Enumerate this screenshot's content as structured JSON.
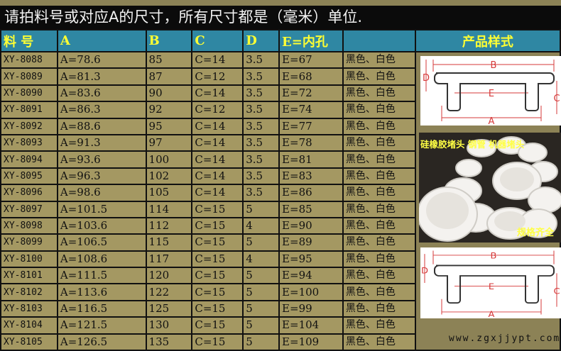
{
  "title": "请拍料号或对应A的尺寸，所有尺寸都是（毫米）单位.",
  "headers": [
    "料 号",
    "A",
    "B",
    "C",
    "D",
    "E=内孔",
    "",
    "产品样式"
  ],
  "rows": [
    [
      "XY-8088",
      "A=78.6",
      "85",
      "C=14",
      "3.5",
      "E=67",
      "黑色、白色"
    ],
    [
      "XY-8089",
      "A=81.3",
      "87",
      "C=12",
      "3.5",
      "E=68",
      "黑色、白色"
    ],
    [
      "XY-8090",
      "A=83.6",
      "90",
      "C=14",
      "3.5",
      "E=72",
      "黑色、白色"
    ],
    [
      "XY-8091",
      "A=86.3",
      "92",
      "C=12",
      "3.5",
      "E=74",
      "黑色、白色"
    ],
    [
      "XY-8092",
      "A=88.6",
      "95",
      "C=14",
      "3.5",
      "E=77",
      "黑色、白色"
    ],
    [
      "XY-8093",
      "A=91.3",
      "97",
      "C=14",
      "3.5",
      "E=78",
      "黑色、白色"
    ],
    [
      "XY-8094",
      "A=93.6",
      "100",
      "C=14",
      "3.5",
      "E=81",
      "黑色、白色"
    ],
    [
      "XY-8095",
      "A=96.3",
      "102",
      "C=14",
      "3.5",
      "E=83",
      "黑色、白色"
    ],
    [
      "XY-8096",
      "A=98.6",
      "105",
      "C=14",
      "3.5",
      "E=86",
      "黑色、白色"
    ],
    [
      "XY-8097",
      "A=101.5",
      "114",
      "C=15",
      "5",
      "E=85",
      "黑色、白色"
    ],
    [
      "XY-8098",
      "A=103.6",
      "112",
      "C=15",
      "4",
      "E=90",
      "黑色、白色"
    ],
    [
      "XY-8099",
      "A=106.5",
      "115",
      "C=15",
      "5",
      "E=89",
      "黑色、白色"
    ],
    [
      "XY-8100",
      "A=108.6",
      "117",
      "C=15",
      "4",
      "E=95",
      "黑色、白色"
    ],
    [
      "XY-8101",
      "A=111.5",
      "120",
      "C=15",
      "5",
      "E=94",
      "黑色、白色"
    ],
    [
      "XY-8102",
      "A=113.6",
      "122",
      "C=15",
      "5",
      "E=100",
      "黑色、白色"
    ],
    [
      "XY-8103",
      "A=116.5",
      "125",
      "C=15",
      "5",
      "E=99",
      "黑色、白色"
    ],
    [
      "XY-8104",
      "A=121.5",
      "130",
      "C=15",
      "5",
      "E=104",
      "黑色、白色"
    ],
    [
      "XY-8105",
      "A=126.5",
      "135",
      "C=15",
      "5",
      "E=109",
      "黑色、白色"
    ]
  ],
  "diagram_labels": {
    "a": "A",
    "b": "B",
    "c": "C",
    "d": "D",
    "e": "E"
  },
  "photo": {
    "caption_top": "硅橡胶堵头 钢管 机器堵头",
    "caption_bottom": "规格齐全"
  },
  "watermark": "www.zgxjjypt.com",
  "colors": {
    "header_bg": "#2f87a3",
    "header_text": "#ffff33",
    "row_bg": "#a49862",
    "dimension_lines": "#d63a3a"
  }
}
